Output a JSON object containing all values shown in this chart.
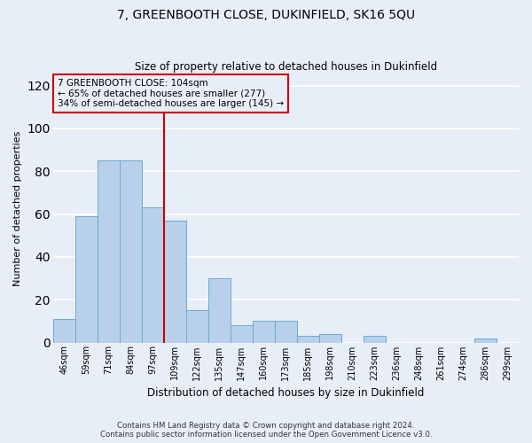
{
  "title": "7, GREENBOOTH CLOSE, DUKINFIELD, SK16 5QU",
  "subtitle": "Size of property relative to detached houses in Dukinfield",
  "xlabel": "Distribution of detached houses by size in Dukinfield",
  "ylabel": "Number of detached properties",
  "bar_labels": [
    "46sqm",
    "59sqm",
    "71sqm",
    "84sqm",
    "97sqm",
    "109sqm",
    "122sqm",
    "135sqm",
    "147sqm",
    "160sqm",
    "173sqm",
    "185sqm",
    "198sqm",
    "210sqm",
    "223sqm",
    "236sqm",
    "248sqm",
    "261sqm",
    "274sqm",
    "286sqm",
    "299sqm"
  ],
  "bar_values": [
    11,
    59,
    85,
    85,
    63,
    57,
    15,
    30,
    8,
    10,
    10,
    3,
    4,
    0,
    3,
    0,
    0,
    0,
    0,
    2,
    0
  ],
  "bar_color": "#b8d0ea",
  "bar_edge_color": "#6aaad4",
  "vline_color": "#cc0000",
  "annotation_title": "7 GREENBOOTH CLOSE: 104sqm",
  "annotation_line1": "← 65% of detached houses are smaller (277)",
  "annotation_line2": "34% of semi-detached houses are larger (145) →",
  "annotation_box_color": "#cc0000",
  "ylim": [
    0,
    125
  ],
  "yticks": [
    0,
    20,
    40,
    60,
    80,
    100,
    120
  ],
  "footnote1": "Contains HM Land Registry data © Crown copyright and database right 2024.",
  "footnote2": "Contains public sector information licensed under the Open Government Licence v3.0.",
  "bg_color": "#e8eef7"
}
